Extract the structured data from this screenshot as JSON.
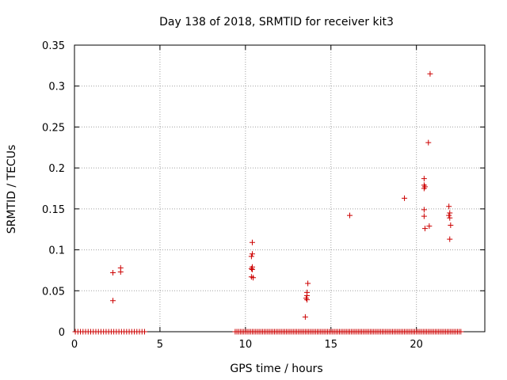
{
  "chart_data": {
    "type": "scatter",
    "title": "Day 138 of 2018, SRMTID for receiver kit3",
    "xlabel": "GPS time / hours",
    "ylabel": "SRMTID / TECUs",
    "xlim": [
      0,
      24
    ],
    "ylim": [
      0,
      0.35
    ],
    "x_ticks": [
      0,
      5,
      10,
      15,
      20
    ],
    "x_tick_labels": [
      "0",
      "5",
      "10",
      "15",
      "20"
    ],
    "y_ticks": [
      0,
      0.05,
      0.1,
      0.15,
      0.2,
      0.25,
      0.3,
      0.35
    ],
    "y_tick_labels": [
      "0",
      "0.05",
      "0.1",
      "0.15",
      "0.2",
      "0.25",
      "0.3",
      "0.35"
    ],
    "grid": true,
    "marker": "plus",
    "marker_color": "#cc0000",
    "zero_ranges": [
      [
        0.05,
        4.1,
        0.15
      ],
      [
        9.4,
        22.6,
        0.1
      ]
    ],
    "points": [
      [
        2.25,
        0.072
      ],
      [
        2.25,
        0.038
      ],
      [
        2.7,
        0.078
      ],
      [
        2.7,
        0.073
      ],
      [
        10.4,
        0.109
      ],
      [
        10.4,
        0.095
      ],
      [
        10.35,
        0.092
      ],
      [
        10.4,
        0.079
      ],
      [
        10.35,
        0.077
      ],
      [
        10.4,
        0.076
      ],
      [
        10.35,
        0.067
      ],
      [
        10.45,
        0.066
      ],
      [
        13.65,
        0.059
      ],
      [
        13.6,
        0.048
      ],
      [
        13.6,
        0.044
      ],
      [
        13.55,
        0.041
      ],
      [
        13.6,
        0.039
      ],
      [
        13.5,
        0.018
      ],
      [
        16.1,
        0.142
      ],
      [
        19.3,
        0.163
      ],
      [
        20.45,
        0.187
      ],
      [
        20.45,
        0.179
      ],
      [
        20.5,
        0.177
      ],
      [
        20.45,
        0.175
      ],
      [
        20.45,
        0.149
      ],
      [
        20.45,
        0.141
      ],
      [
        20.5,
        0.126
      ],
      [
        20.75,
        0.129
      ],
      [
        20.7,
        0.231
      ],
      [
        20.8,
        0.315
      ],
      [
        21.9,
        0.153
      ],
      [
        21.95,
        0.145
      ],
      [
        21.9,
        0.142
      ],
      [
        21.95,
        0.139
      ],
      [
        22.0,
        0.13
      ],
      [
        21.95,
        0.113
      ]
    ]
  }
}
